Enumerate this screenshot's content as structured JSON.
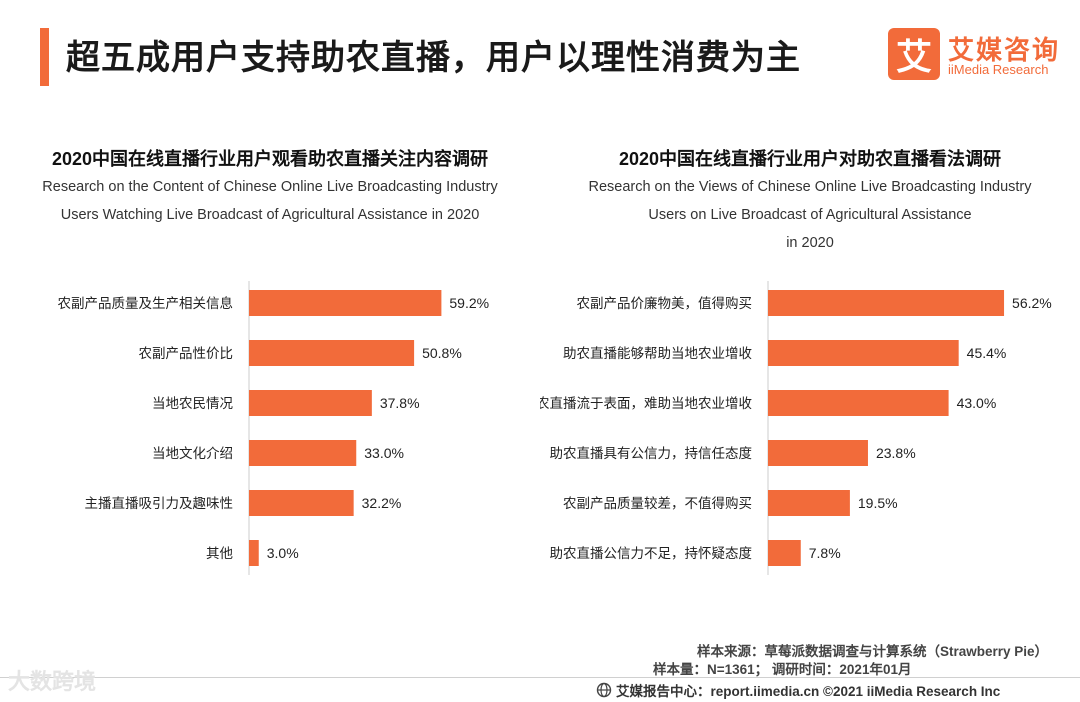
{
  "header": {
    "title": "超五成用户支持助农直播，用户以理性消费为主",
    "brand_mark": "艾",
    "brand_cn": "艾媒咨询",
    "brand_en": "iiMedia Research"
  },
  "colors": {
    "accent": "#f26b3a",
    "bar": "#f26b3a",
    "axis": "#cccccc"
  },
  "chart_data": [
    {
      "type": "bar",
      "orientation": "horizontal",
      "title": "2020中国在线直播行业用户观看助农直播关注内容调研",
      "subtitle_lines": [
        "Research on the Content of Chinese Online Live Broadcasting Industry",
        "Users Watching Live Broadcast of Agricultural Assistance in 2020"
      ],
      "categories": [
        "农副产品质量及生产相关信息",
        "农副产品性价比",
        "当地农民情况",
        "当地文化介绍",
        "主播直播吸引力及趣味性",
        "其他"
      ],
      "values": [
        59.2,
        50.8,
        37.8,
        33.0,
        32.2,
        3.0
      ],
      "value_labels": [
        "59.2%",
        "50.8%",
        "37.8%",
        "33.0%",
        "32.2%",
        "3.0%"
      ],
      "unit": "%",
      "xlim": [
        0,
        100
      ]
    },
    {
      "type": "bar",
      "orientation": "horizontal",
      "title": "2020中国在线直播行业用户对助农直播看法调研",
      "subtitle_lines": [
        "Research on the Views of Chinese Online Live Broadcasting Industry",
        "Users on Live Broadcast of Agricultural Assistance",
        "in 2020"
      ],
      "categories": [
        "农副产品价廉物美，值得购买",
        "助农直播能够帮助当地农业增收",
        "助农直播流于表面，难助当地农业增收",
        "助农直播具有公信力，持信任态度",
        "农副产品质量较差，不值得购买",
        "助农直播公信力不足，持怀疑态度"
      ],
      "values": [
        56.2,
        45.4,
        43.0,
        23.8,
        19.5,
        7.8
      ],
      "value_labels": [
        "56.2%",
        "45.4%",
        "43.0%",
        "23.8%",
        "19.5%",
        "7.8%"
      ],
      "unit": "%",
      "xlim": [
        0,
        100
      ]
    }
  ],
  "footer": {
    "source": "样本来源：草莓派数据调查与计算系统（Strawberry Pie）",
    "sample": "样本量：N=1361；  调研时间：2021年01月",
    "center": "艾媒报告中心：report.iimedia.cn   ©2021  iiMedia Research  Inc",
    "watermark": "大数跨境"
  }
}
